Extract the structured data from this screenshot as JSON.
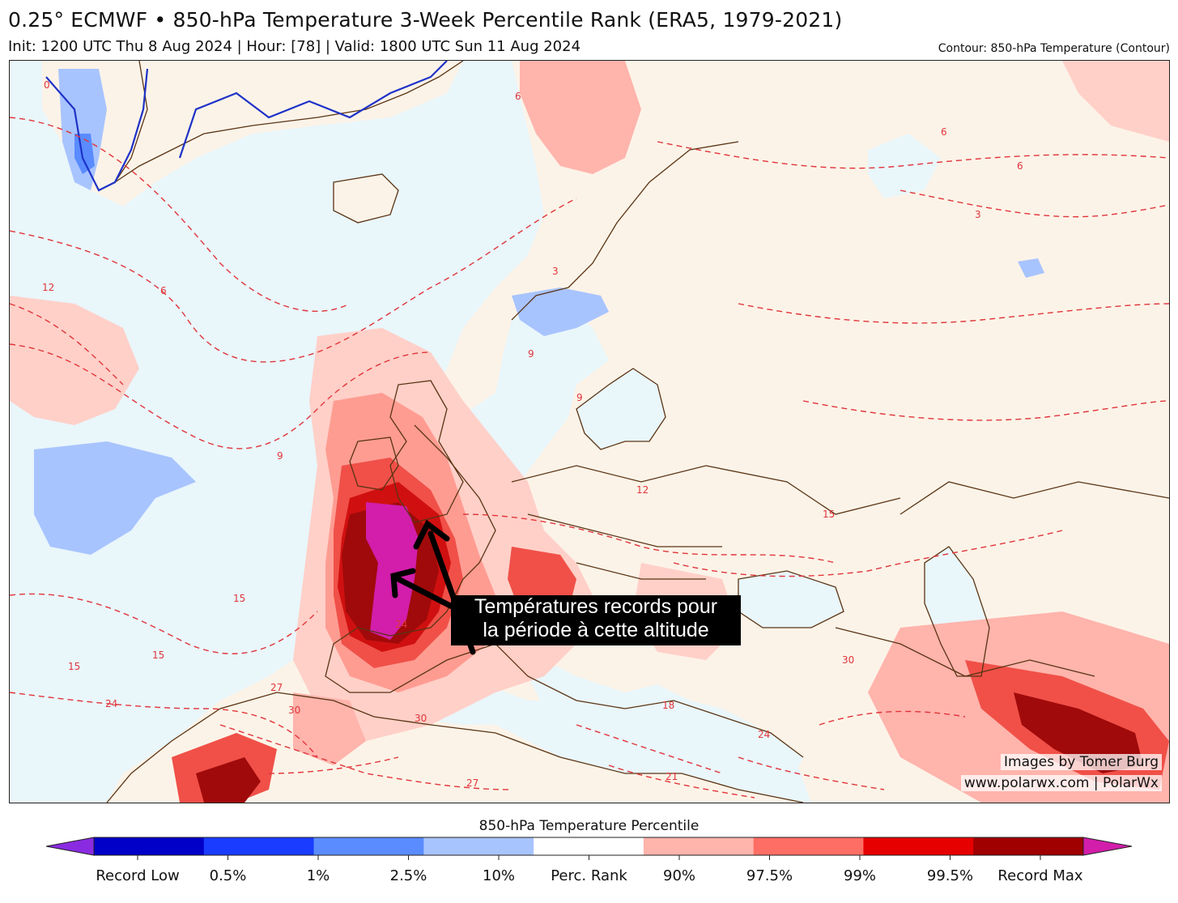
{
  "header": {
    "title": "0.25° ECMWF • 850-hPa Temperature 3-Week Percentile Rank (ERA5, 1979-2021)",
    "subtitle": "Init: 1200 UTC Thu 8 Aug 2024 | Hour: [78] | Valid: 1800 UTC Sun 11 Aug 2024",
    "contour_note": "Contour: 850-hPa Temperature (Contour)"
  },
  "annotation": {
    "line1": "Températures records pour",
    "line2": "la période à cette altitude"
  },
  "credits": {
    "line1": "Images by Tomer Burg",
    "line2": "www.polarwx.com | PolarWx"
  },
  "contour_labels": [
    "12",
    "6",
    "9",
    "15",
    "15",
    "15",
    "24",
    "27",
    "30",
    "30",
    "24",
    "27",
    "12",
    "15",
    "9",
    "6",
    "3",
    "3",
    "6",
    "6",
    "9",
    "18",
    "21",
    "24",
    "30",
    "0"
  ],
  "colorbar": {
    "title": "850-hPa Temperature Percentile",
    "colors": [
      "#8a2be2",
      "#0000c8",
      "#1a3cff",
      "#5a8cff",
      "#a8c4ff",
      "#ffffff",
      "#ffb4ac",
      "#ff6e64",
      "#e60000",
      "#a00000",
      "#d21eaa"
    ],
    "labels": [
      "Record Low",
      "0.5%",
      "1%",
      "2.5%",
      "10%",
      "Perc. Rank",
      "90%",
      "97.5%",
      "99%",
      "99.5%",
      "Record Max"
    ]
  },
  "colors": {
    "ocean_neutral": "#e9f6fa",
    "land_neutral": "#fcf3e8",
    "warm_light": "#ffd0c8",
    "warm_mid": "#ff9c92",
    "warm_strong": "#f05048",
    "hot": "#d01010",
    "very_hot": "#a00a0a",
    "record_max": "#d21eaa",
    "cool_light": "#a8c4ff",
    "cool_mid": "#5a8cff",
    "contour": "#e0353a",
    "coast": "#5a3414",
    "zero_contour": "#1e32c8"
  }
}
